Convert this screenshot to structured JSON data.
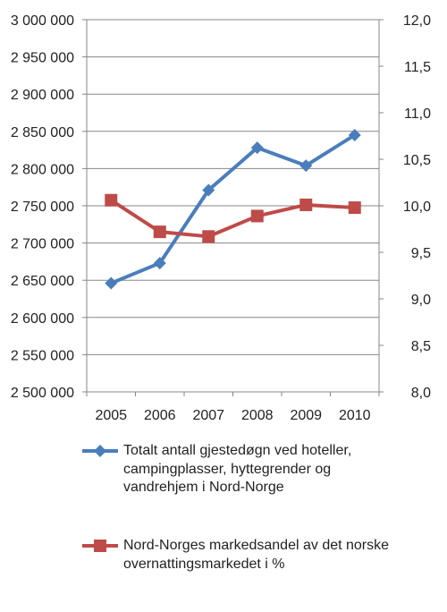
{
  "chart_data": {
    "type": "line",
    "categories": [
      "2005",
      "2006",
      "2007",
      "2008",
      "2009",
      "2010"
    ],
    "series": [
      {
        "name": "Totalt antall gjestedøgn ved hoteller, campingplasser, hyttegrender og vandrehjem i Nord-Norge",
        "axis": "left",
        "color": "#4a7ebb",
        "marker": "diamond",
        "values": [
          2646000,
          2673000,
          2771000,
          2828000,
          2804000,
          2845000
        ]
      },
      {
        "name": "Nord-Norges markedsandel av det norske overnattingsmarkedet i %",
        "axis": "right",
        "color": "#be4b48",
        "marker": "square",
        "values": [
          10.06,
          9.72,
          9.67,
          9.89,
          10.01,
          9.98
        ]
      }
    ],
    "y_left": {
      "range": [
        2500000,
        3000000
      ],
      "ticks": [
        3000000,
        2950000,
        2900000,
        2850000,
        2800000,
        2750000,
        2700000,
        2650000,
        2600000,
        2550000,
        2500000
      ],
      "tick_labels": [
        "3 000 000",
        "2 950 000",
        "2 900 000",
        "2 850 000",
        "2 800 000",
        "2 750 000",
        "2 700 000",
        "2 650 000",
        "2 600 000",
        "2 550 000",
        "2 500 000"
      ]
    },
    "y_right": {
      "range": [
        8.0,
        12.0
      ],
      "ticks": [
        12.0,
        11.5,
        11.0,
        10.5,
        10.0,
        9.5,
        9.0,
        8.5,
        8.0
      ],
      "tick_labels": [
        "12,0",
        "11,5",
        "11,0",
        "10,5",
        "10,0",
        "9,5",
        "9,0",
        "8,5",
        "8,0"
      ]
    },
    "grid": true,
    "legend_position": "bottom"
  },
  "colors": {
    "grid": "#878787",
    "axis": "#878787",
    "series_blue": "#4a7ebb",
    "series_red": "#be4b48"
  }
}
